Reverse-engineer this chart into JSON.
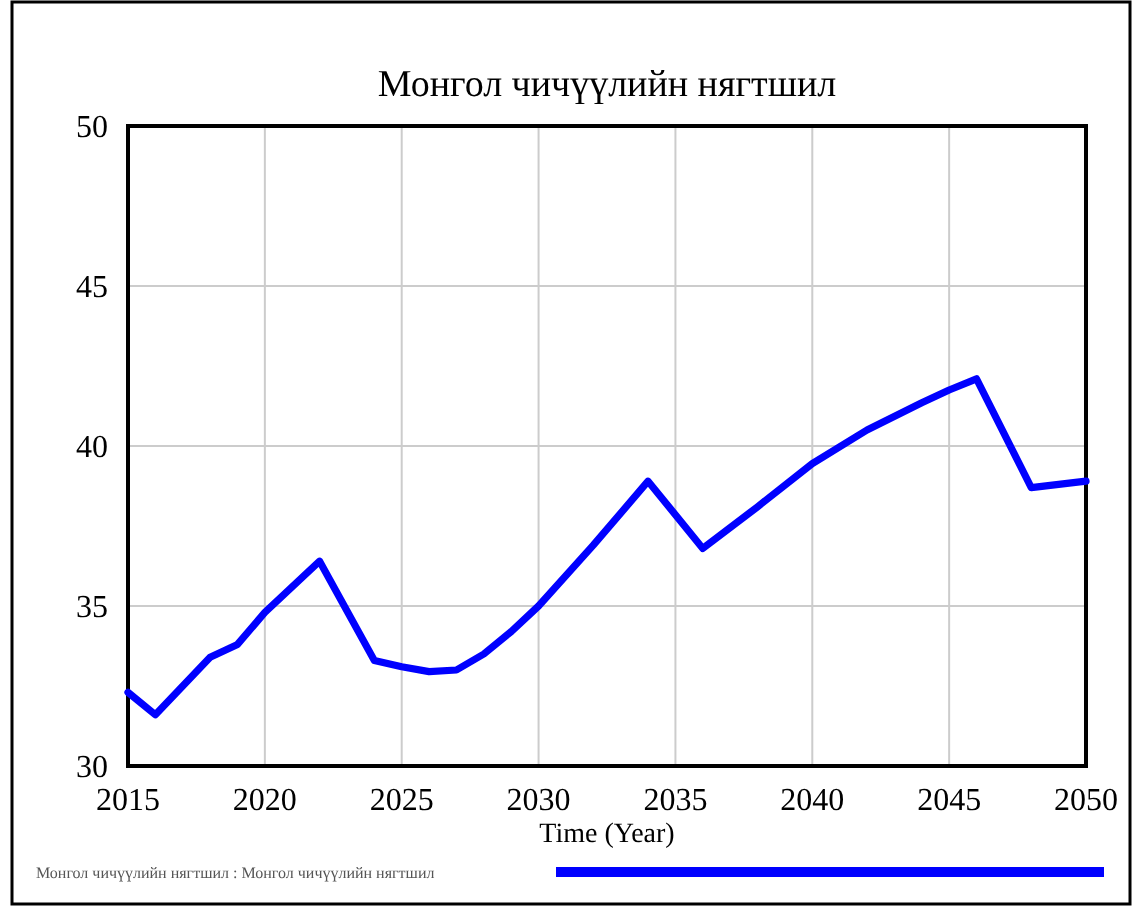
{
  "chart_data": {
    "type": "line",
    "title": "Монгол чичүүлийн нягтшил",
    "xlabel": "Time (Year)",
    "x": [
      2015,
      2016,
      2017,
      2018,
      2019,
      2020,
      2022,
      2024,
      2025,
      2026,
      2027,
      2028,
      2029,
      2030,
      2032,
      2034,
      2036,
      2038,
      2040,
      2042,
      2044,
      2045,
      2046,
      2048,
      2050
    ],
    "series": [
      {
        "name": "Монгол чичүүлийн нягтшил : Монгол чичүүлийн нягтшил",
        "color": "#0000ff",
        "values": [
          32.3,
          31.6,
          32.5,
          33.4,
          33.8,
          34.8,
          36.4,
          33.3,
          33.1,
          32.95,
          33.0,
          33.5,
          34.2,
          35.0,
          36.9,
          38.9,
          36.8,
          38.1,
          39.45,
          40.5,
          41.35,
          41.75,
          42.1,
          38.7,
          38.9
        ]
      }
    ],
    "xlim": [
      2015,
      2050
    ],
    "xticks": [
      2015,
      2020,
      2025,
      2030,
      2035,
      2040,
      2045,
      2050
    ],
    "ylim": [
      30,
      50
    ],
    "yticks": [
      30,
      35,
      40,
      45,
      50
    ],
    "grid": true,
    "legend": "bottom",
    "marker": "none",
    "line_style": "solid"
  }
}
